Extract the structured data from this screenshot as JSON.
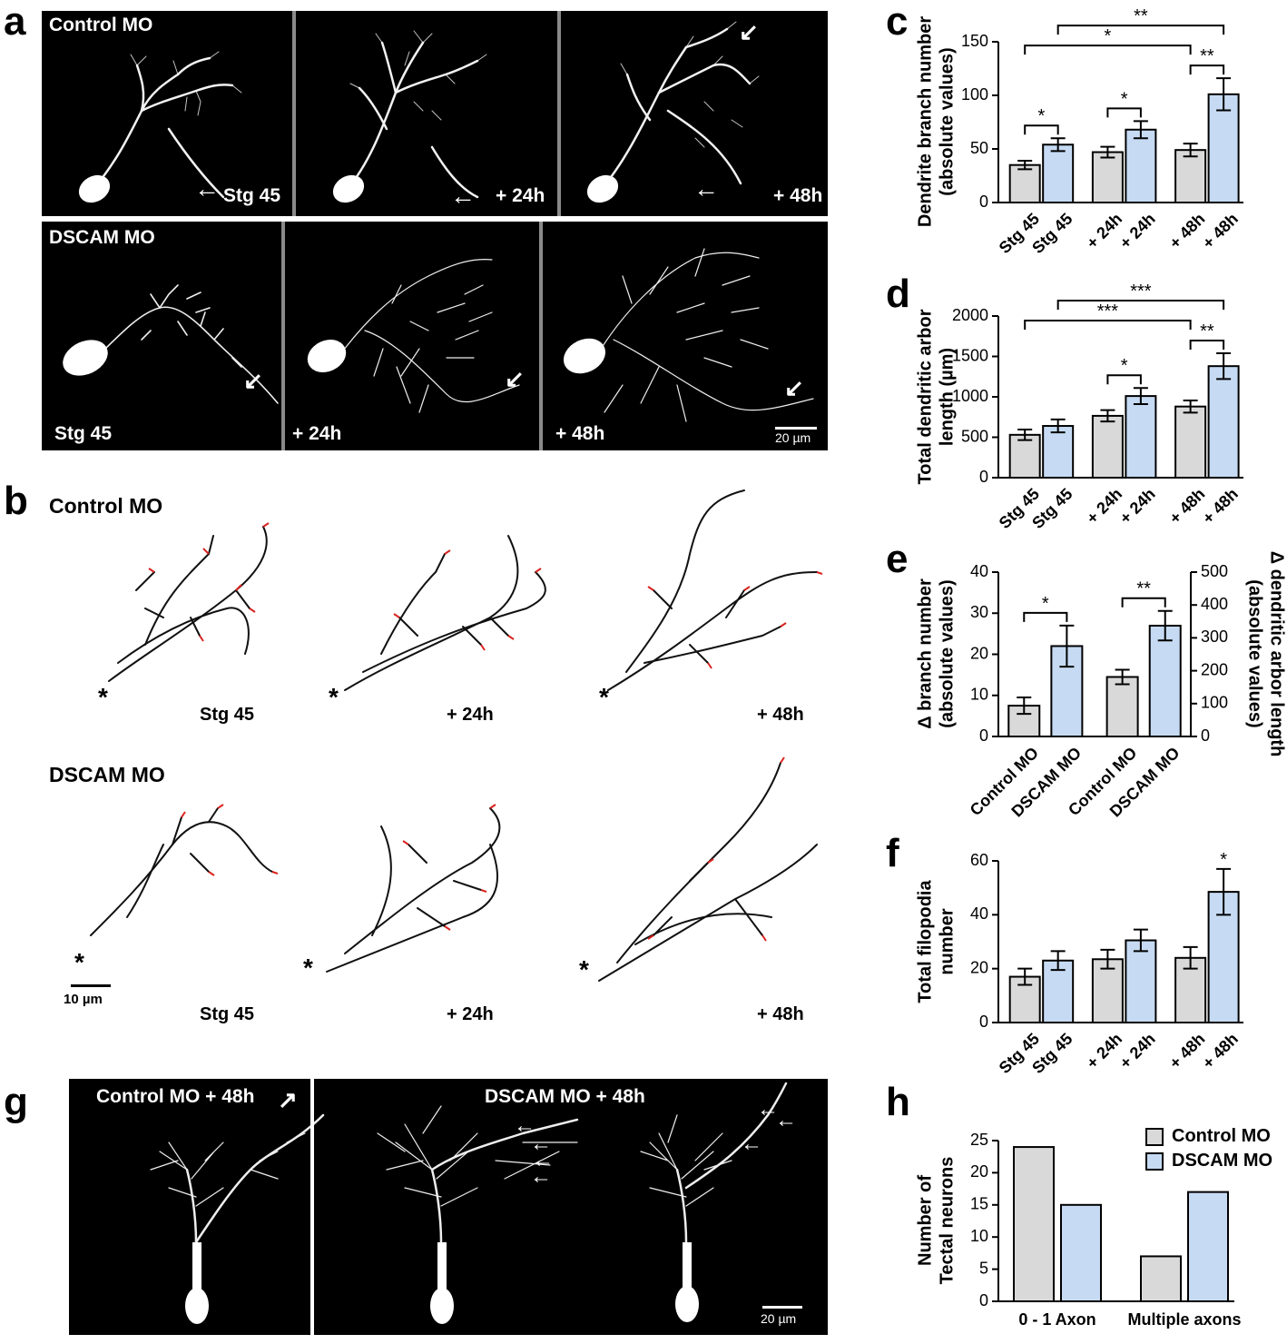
{
  "panels": {
    "a": "a",
    "b": "b",
    "c": "c",
    "d": "d",
    "e": "e",
    "f": "f",
    "g": "g",
    "h": "h"
  },
  "colors": {
    "control": "#d9d9d9",
    "dscam": "#c6dbf3",
    "trace": "#111111",
    "filopodia": "#d9231f"
  },
  "panel_a": {
    "control_title": "Control MO",
    "dscam_title": "DSCAM MO",
    "control_times": [
      "Stg 45",
      "+ 24h",
      "+ 48h"
    ],
    "dscam_times": [
      "Stg 45",
      "+ 24h",
      "+ 48h"
    ],
    "scale_bar": "20 µm",
    "arrow_icon": "arrow-icon"
  },
  "panel_b": {
    "control_title": "Control MO",
    "dscam_title": "DSCAM MO",
    "control_times": [
      "Stg 45",
      "+ 24h",
      "+ 48h"
    ],
    "dscam_times": [
      "Stg 45",
      "+ 24h",
      "+ 48h"
    ],
    "soma_marker": "*",
    "scale_bar": "10 µm"
  },
  "panel_g": {
    "control_title": "Control MO + 48h",
    "dscam_title": "DSCAM MO + 48h",
    "scale_bar": "20 µm"
  },
  "chart_data": [
    {
      "panel": "c",
      "type": "bar",
      "ylabel_lines": [
        "Dendrite branch number",
        "(absolute values)"
      ],
      "categories": [
        "Stg 45",
        "Stg 45",
        "+ 24h",
        "+ 24h",
        "+ 48h",
        "+ 48h"
      ],
      "groups": [
        "control",
        "dscam",
        "control",
        "dscam",
        "control",
        "dscam"
      ],
      "values": [
        35,
        54,
        47,
        68,
        49,
        101
      ],
      "errors": [
        4,
        6,
        5,
        8,
        6,
        15
      ],
      "ylim": [
        0,
        150
      ],
      "yticks": [
        0,
        50,
        100,
        150
      ],
      "significance": [
        {
          "from": 0,
          "to": 1,
          "label": "*"
        },
        {
          "from": 2,
          "to": 3,
          "label": "*"
        },
        {
          "from": 4,
          "to": 5,
          "label": "**"
        },
        {
          "from": 0,
          "to": 4,
          "label": "*"
        },
        {
          "from": 1,
          "to": 5,
          "label": "**"
        }
      ]
    },
    {
      "panel": "d",
      "type": "bar",
      "ylabel_lines": [
        "Total dendritic arbor",
        "length (µm)"
      ],
      "categories": [
        "Stg 45",
        "Stg 45",
        "+ 24h",
        "+ 24h",
        "+ 48h",
        "+ 48h"
      ],
      "groups": [
        "control",
        "dscam",
        "control",
        "dscam",
        "control",
        "dscam"
      ],
      "values": [
        530,
        640,
        765,
        1010,
        880,
        1380
      ],
      "errors": [
        65,
        80,
        70,
        100,
        75,
        160
      ],
      "ylim": [
        0,
        2000
      ],
      "yticks": [
        0,
        500,
        1000,
        1500,
        2000
      ],
      "significance": [
        {
          "from": 2,
          "to": 3,
          "label": "*"
        },
        {
          "from": 4,
          "to": 5,
          "label": "**"
        },
        {
          "from": 0,
          "to": 4,
          "label": "***"
        },
        {
          "from": 1,
          "to": 5,
          "label": "***"
        }
      ]
    },
    {
      "panel": "e",
      "type": "bar",
      "ylabel_lines": [
        "Δ branch number",
        "(absolute values)"
      ],
      "ylabel_right_lines": [
        "Δ dendritic arbor length",
        "(absolute values)"
      ],
      "categories": [
        "Control MO",
        "DSCAM MO",
        "Control MO",
        "DSCAM MO"
      ],
      "groups": [
        "control",
        "dscam",
        "control",
        "dscam"
      ],
      "axis": [
        "left",
        "left",
        "right",
        "right"
      ],
      "values": [
        7.5,
        22,
        181,
        337
      ],
      "errors": [
        2,
        5,
        22,
        45
      ],
      "ylim": [
        0,
        40
      ],
      "ylim_right": [
        0,
        500
      ],
      "yticks": [
        0,
        10,
        20,
        30,
        40
      ],
      "yticks_right": [
        0,
        100,
        200,
        300,
        400,
        500
      ],
      "significance": [
        {
          "from": 0,
          "to": 1,
          "label": "*"
        },
        {
          "from": 2,
          "to": 3,
          "label": "**"
        }
      ]
    },
    {
      "panel": "f",
      "type": "bar",
      "ylabel_lines": [
        "Total filopodia",
        "number"
      ],
      "categories": [
        "Stg 45",
        "Stg 45",
        "+ 24h",
        "+ 24h",
        "+ 48h",
        "+ 48h"
      ],
      "groups": [
        "control",
        "dscam",
        "control",
        "dscam",
        "control",
        "dscam"
      ],
      "values": [
        17,
        23,
        23.5,
        30.5,
        24,
        48.5
      ],
      "errors": [
        3,
        3.5,
        3.5,
        4,
        4,
        8.5
      ],
      "ylim": [
        0,
        60
      ],
      "yticks": [
        0,
        20,
        40,
        60
      ],
      "significance": [
        {
          "bar": 5,
          "label": "*"
        }
      ]
    },
    {
      "panel": "h",
      "type": "bar",
      "ylabel_lines": [
        "Number of",
        "Tectal neurons"
      ],
      "categories": [
        "0 - 1 Axon",
        "Multiple axons"
      ],
      "series": [
        {
          "name": "Control MO",
          "values": [
            24,
            7
          ]
        },
        {
          "name": "DSCAM MO",
          "values": [
            15,
            17
          ]
        }
      ],
      "ylim": [
        0,
        25
      ],
      "yticks": [
        0,
        5,
        10,
        15,
        20,
        25
      ],
      "legend_position": "top-right"
    }
  ]
}
